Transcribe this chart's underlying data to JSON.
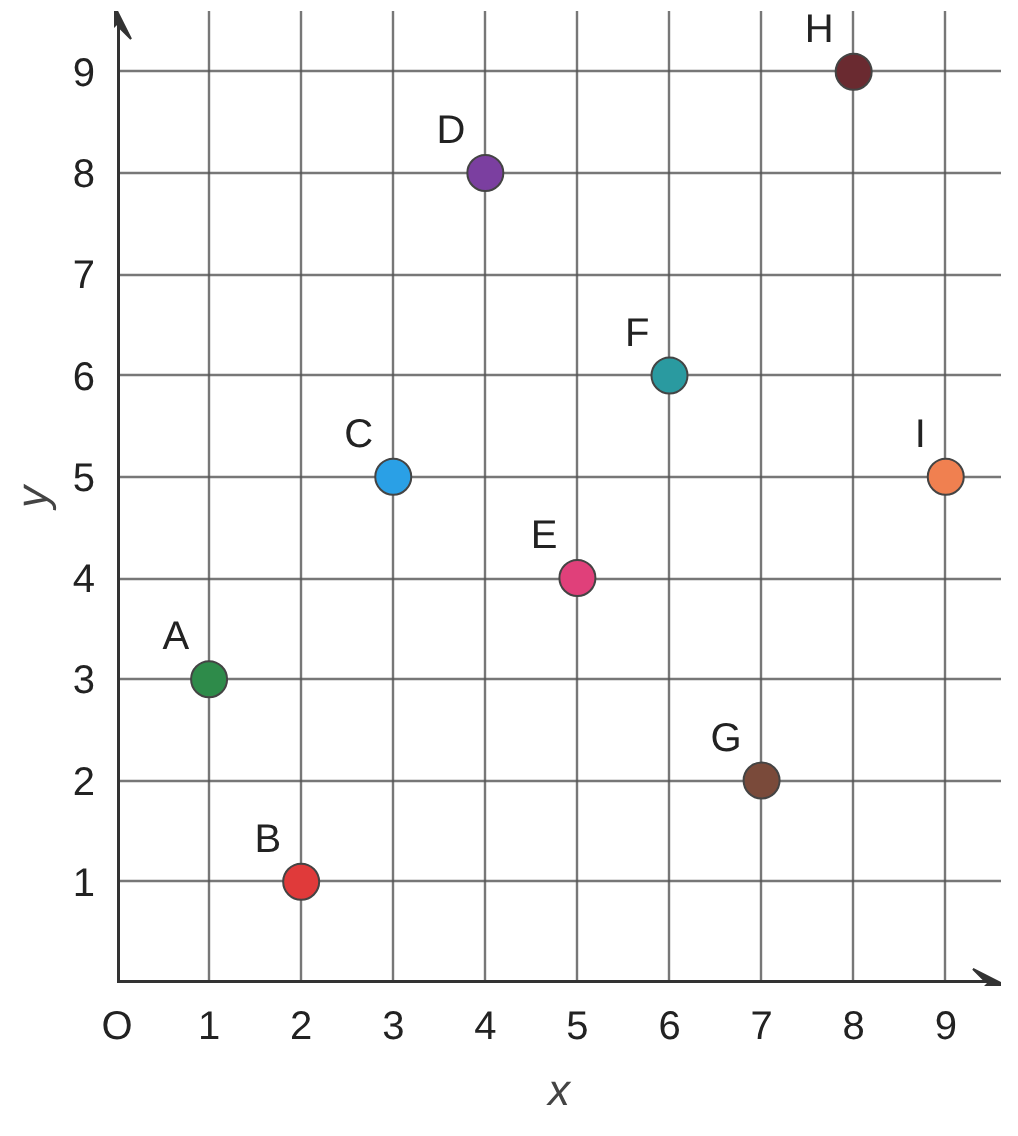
{
  "chart_data": {
    "type": "scatter",
    "xlabel": "x",
    "ylabel": "y",
    "xlim": [
      0,
      9.6
    ],
    "ylim": [
      0,
      9.6
    ],
    "xticks": [
      {
        "value": 0,
        "label": "O"
      },
      1,
      2,
      3,
      4,
      5,
      6,
      7,
      8,
      9
    ],
    "yticks": [
      {
        "value": 0,
        "label": null
      },
      1,
      2,
      3,
      4,
      5,
      6,
      7,
      8,
      9
    ],
    "grid": true,
    "marker": "circle",
    "series": [
      {
        "name": "A",
        "color": "#2e8b4a",
        "x": [
          1
        ],
        "values": [
          3
        ]
      },
      {
        "name": "B",
        "color": "#e03a3a",
        "x": [
          2
        ],
        "values": [
          1
        ]
      },
      {
        "name": "C",
        "color": "#2aa0e6",
        "x": [
          3
        ],
        "values": [
          5
        ]
      },
      {
        "name": "D",
        "color": "#7b3fa0",
        "x": [
          4
        ],
        "values": [
          8
        ]
      },
      {
        "name": "E",
        "color": "#e0407a",
        "x": [
          5
        ],
        "values": [
          4
        ]
      },
      {
        "name": "F",
        "color": "#2a9aa0",
        "x": [
          6
        ],
        "values": [
          6
        ]
      },
      {
        "name": "G",
        "color": "#7a4a3a",
        "x": [
          7
        ],
        "values": [
          2
        ]
      },
      {
        "name": "H",
        "color": "#6a2a30",
        "x": [
          8
        ],
        "values": [
          9
        ]
      },
      {
        "name": "I",
        "color": "#f08050",
        "x": [
          9
        ],
        "values": [
          5
        ]
      }
    ]
  }
}
